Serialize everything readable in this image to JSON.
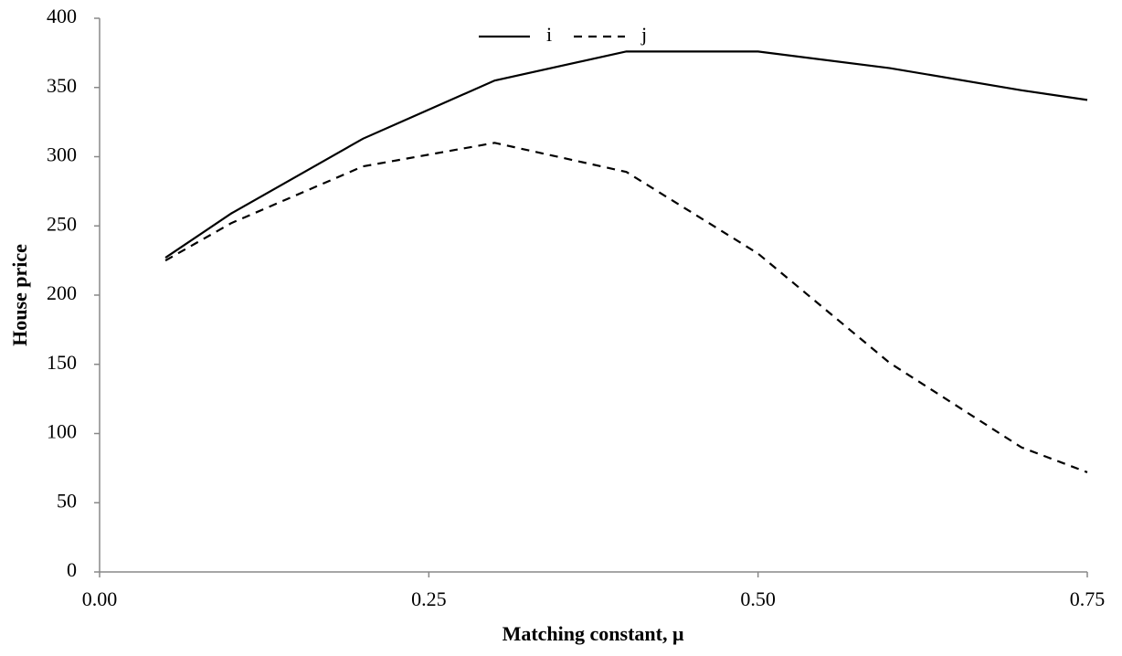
{
  "chart_data": {
    "type": "line",
    "x_label": "Matching constant, μ",
    "y_label": "House price",
    "x": [
      0.05,
      0.1,
      0.2,
      0.3,
      0.4,
      0.5,
      0.6,
      0.7,
      0.75
    ],
    "series": [
      {
        "name": "i",
        "color": "#000000",
        "dash": "solid",
        "values": [
          227,
          259,
          313,
          355,
          376,
          376,
          364,
          348,
          341
        ]
      },
      {
        "name": "j",
        "color": "#000000",
        "dash": "dashed",
        "values": [
          225,
          252,
          293,
          310,
          289,
          230,
          151,
          90,
          72
        ]
      }
    ],
    "xlim": [
      0,
      0.75
    ],
    "xticks": [
      {
        "value": 0,
        "label": "0.00"
      },
      0.25,
      {
        "value": 0.5,
        "label": "0.50"
      },
      0.75
    ],
    "ylim": [
      0,
      400
    ],
    "yticks": [
      0,
      50,
      100,
      150,
      200,
      250,
      300,
      350,
      400
    ],
    "grid": false,
    "legend": "top"
  }
}
